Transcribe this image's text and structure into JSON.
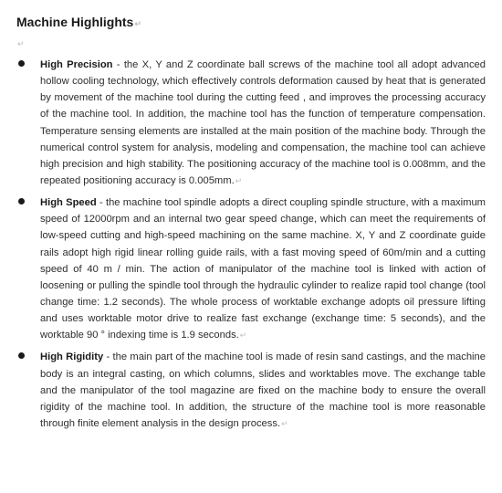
{
  "heading": "Machine Highlights",
  "paragraph_mark": "↵",
  "items": [
    {
      "title": "High Precision",
      "body": " - the X, Y and Z coordinate ball screws of the machine tool all adopt advanced hollow cooling technology, which effectively controls deformation caused by heat that is generated by movement of the machine tool during the cutting feed , and improves the processing accuracy of the machine tool. In addition, the machine tool has the function of temperature compensation. Temperature sensing elements are installed at the main position of the machine body. Through the numerical control system for analysis, modeling and compensation, the machine tool can achieve high precision and high stability. The positioning accuracy of the machine tool is 0.008mm, and the repeated positioning accuracy is 0.005mm."
    },
    {
      "title": "High Speed",
      "body": " - the machine tool spindle adopts a direct coupling spindle structure, with a maximum speed of 12000rpm and an internal two gear speed change, which can meet the requirements of low-speed cutting and high-speed machining on the same machine. X, Y and Z coordinate guide rails adopt high rigid linear rolling guide rails, with a fast moving speed of 60m/min and a cutting speed of 40 m / min. The action of manipulator of the machine tool is linked with action of loosening or pulling the spindle tool through the hydraulic cylinder to realize rapid tool change (tool change time: 1.2 seconds). The whole process of worktable exchange adopts oil pressure lifting and uses worktable motor drive to realize fast exchange (exchange time: 5 seconds), and the worktable 90 ° indexing time is 1.9 seconds."
    },
    {
      "title": "High Rigidity",
      "body": " - the main part of the machine tool is made of resin sand castings, and the machine body is an integral casting, on which columns, slides and worktables move. The exchange table and the manipulator of the tool magazine are fixed on the machine body to ensure the overall rigidity of the machine tool. In addition, the structure of the machine tool is more reasonable through finite element analysis in the design process."
    }
  ]
}
